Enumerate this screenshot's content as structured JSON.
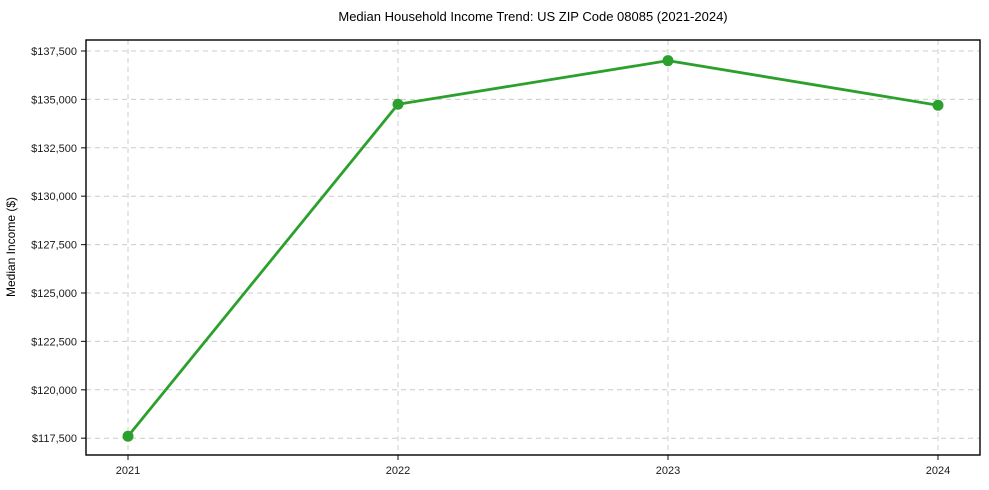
{
  "chart_data": {
    "type": "line",
    "title": "Median Household Income Trend: US ZIP Code 08085 (2021-2024)",
    "xlabel": "",
    "ylabel": "Median Income ($)",
    "categories": [
      "2021",
      "2022",
      "2023",
      "2024"
    ],
    "series": [
      {
        "name": "Median Household Income",
        "values": [
          117600,
          134750,
          137000,
          134700
        ],
        "color": "#2ca02c",
        "marker": "circle"
      }
    ],
    "yticks": [
      117500,
      120000,
      122500,
      125000,
      127500,
      130000,
      132500,
      135000,
      137500
    ],
    "ytick_labels": [
      "$117,500",
      "$120,000",
      "$122,500",
      "$125,000",
      "$127,500",
      "$130,000",
      "$132,500",
      "$135,000",
      "$137,500"
    ],
    "ylim": [
      116632,
      138068
    ],
    "grid": true,
    "grid_style": "dashed",
    "legend_position": "none",
    "colors": {
      "line": "#2ca02c",
      "grid": "#cccccc",
      "spine": "#000000",
      "tick": "#333333",
      "tick_label": "#1a1a1a",
      "background": "#ffffff"
    }
  }
}
